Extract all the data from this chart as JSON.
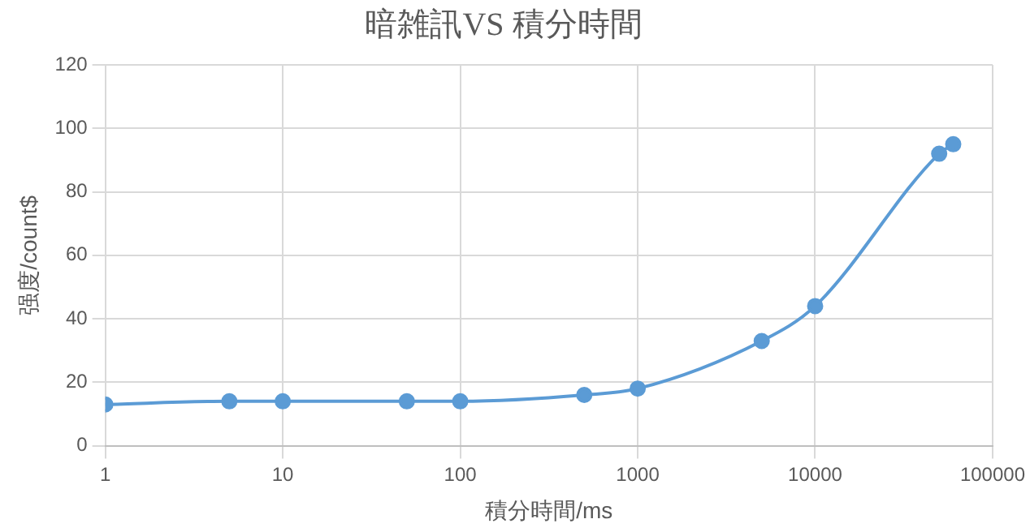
{
  "chart_data": {
    "type": "line",
    "title": "暗雑訊VS 積分時間",
    "xlabel": "積分時間/ms",
    "ylabel": "强度/count$",
    "log": "x",
    "x": [
      1,
      5,
      10,
      50,
      100,
      500,
      1000,
      5000,
      10000,
      50000,
      60000
    ],
    "series": [
      {
        "color": "#5b9bd5",
        "values": [
          13,
          14,
          14,
          14,
          14,
          16,
          18,
          33,
          44,
          92,
          95
        ]
      }
    ],
    "xlim": [
      1,
      100000
    ],
    "xticks": [
      1,
      10,
      100,
      1000,
      10000,
      100000
    ],
    "ylim": [
      0,
      120
    ],
    "yticks": [
      0,
      20,
      40,
      60,
      80,
      100,
      120
    ],
    "grid": true,
    "legend": false,
    "marker": "circle",
    "line_style": "solid"
  }
}
